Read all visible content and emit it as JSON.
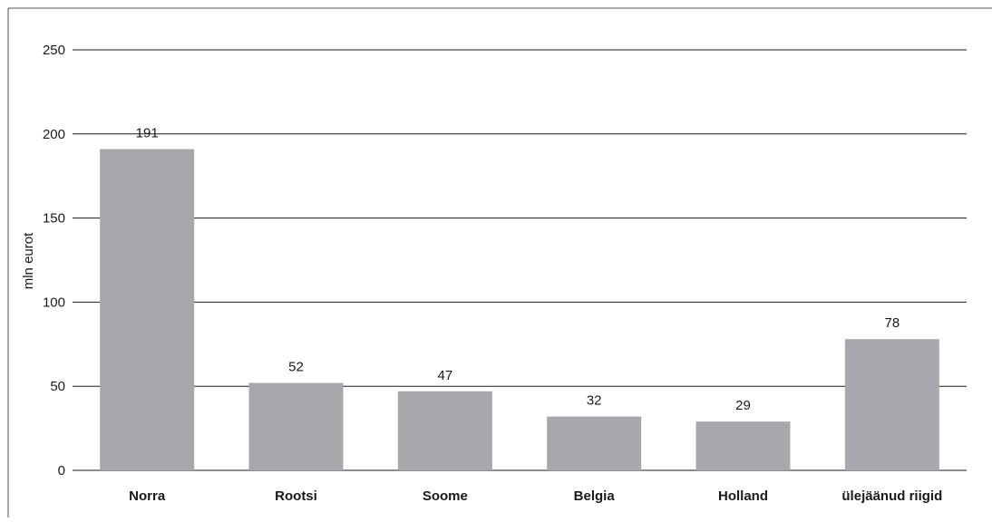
{
  "chart_data": {
    "type": "bar",
    "ylabel": "mln eurot",
    "xlabel": "",
    "ylim": [
      0,
      250
    ],
    "yticks": [
      0,
      50,
      100,
      150,
      200,
      250
    ],
    "grid": true,
    "categories": [
      "Norra",
      "Rootsi",
      "Soome",
      "Belgia",
      "Holland",
      "ülejäänud riigid"
    ],
    "values": [
      191,
      52,
      47,
      32,
      29,
      78
    ],
    "data_labels": [
      "191",
      "52",
      "47",
      "32",
      "29",
      "78"
    ],
    "colors": {
      "bar": "#a7a8ab",
      "grid": "#1a1a1a",
      "frame": "#555555"
    }
  }
}
